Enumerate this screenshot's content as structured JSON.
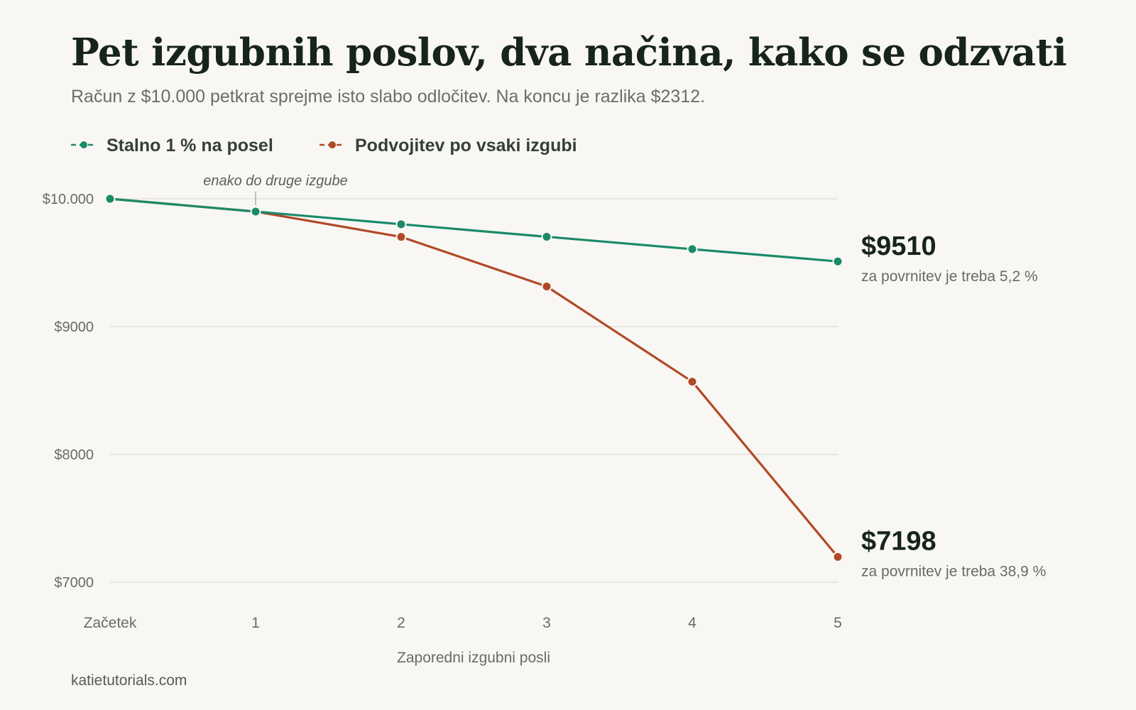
{
  "chart_data": {
    "type": "line",
    "title": "Pet izgubnih poslov, dva načina, kako se odzvati",
    "subtitle": "Račun z $10.000 petkrat sprejme isto slabo odločitev. Na koncu je razlika $2312.",
    "categories": [
      "Začetek",
      "1",
      "2",
      "3",
      "4",
      "5"
    ],
    "xlabel": "Zaporedni izgubni posli",
    "ylabel": "",
    "ylim": [
      7000,
      10000
    ],
    "yticks": [
      {
        "value": 10000,
        "label": "$10.000"
      },
      {
        "value": 9000,
        "label": "$9000"
      },
      {
        "value": 8000,
        "label": "$8000"
      },
      {
        "value": 7000,
        "label": "$7000"
      }
    ],
    "grid": true,
    "legend_position": "top-left",
    "series": [
      {
        "name": "Stalno 1 % na posel",
        "color": "#1a8a69",
        "values": [
          10000,
          9900,
          9801,
          9703,
          9606,
          9510
        ],
        "end_label": "$9510",
        "end_note": "za povrnitev je treba 5,2 %"
      },
      {
        "name": "Podvojitev po vsaki izgubi",
        "color": "#b04a26",
        "values": [
          10000,
          9900,
          9702,
          9314,
          8569,
          7198
        ],
        "end_label": "$7198",
        "end_note": "za povrnitev je treba 38,9 %"
      }
    ],
    "annotation": {
      "text": "enako do druge izgube",
      "category_index": 1
    },
    "source": "katietutorials.com"
  }
}
